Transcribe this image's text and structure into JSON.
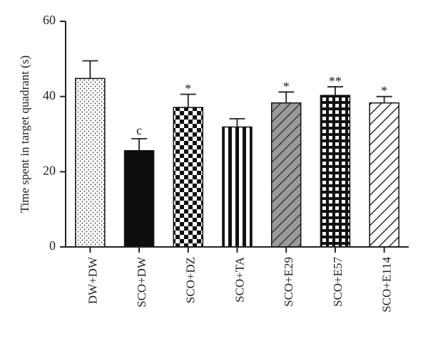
{
  "chart_data": {
    "type": "bar",
    "title": "",
    "xlabel": "",
    "ylabel": "Time spent in target quadrant (s)",
    "ylim": [
      0,
      60
    ],
    "yticks": [
      0,
      20,
      40,
      60
    ],
    "grid": false,
    "categories": [
      "DW+DW",
      "SCO+DW",
      "SCO+DZ",
      "SCO+TA",
      "SCO+E29",
      "SCO+E57",
      "SCO+E114"
    ],
    "values": [
      44.8,
      25.6,
      37.1,
      31.9,
      38.3,
      40.3,
      38.3
    ],
    "errors": [
      4.7,
      3.2,
      3.5,
      2.2,
      2.9,
      2.3,
      1.7
    ],
    "annotations": [
      "",
      "c",
      "*",
      "",
      "*",
      "**",
      "*"
    ],
    "patterns": [
      "dots",
      "solid-black",
      "checker",
      "vertical-stripes",
      "gray-diagonal",
      "grid",
      "diagonal"
    ],
    "colors": {
      "ink": "#111111",
      "gray_fill": "#9a9a9a",
      "background": "#ffffff"
    }
  }
}
